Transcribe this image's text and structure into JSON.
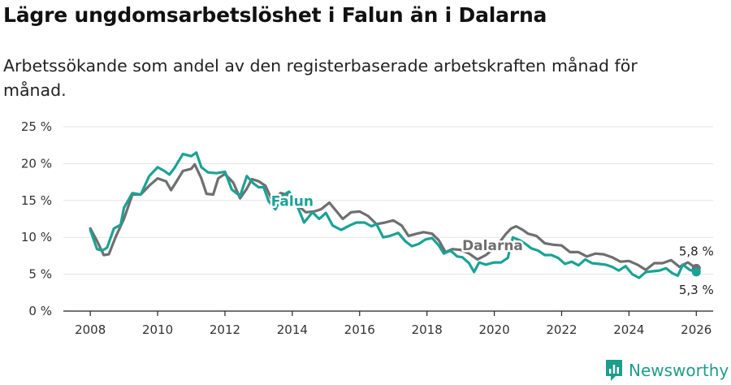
{
  "title": "Lägre ungdomsarbetslöshet i Falun än i Dalarna",
  "subtitle": "Arbetssökande som andel av den registerbaserade arbetskraften månad för månad.",
  "brand": {
    "name": "Newsworthy",
    "icon": "newsworthy-logo-icon"
  },
  "colors": {
    "falun": "#1aa394",
    "dalarna": "#6f6e70",
    "grid": "#e3e3e3",
    "axis": "#222222"
  },
  "chart_data": {
    "type": "line",
    "title": "Lägre ungdomsarbetslöshet i Falun än i Dalarna",
    "xlabel": "",
    "ylabel": "",
    "xlim": [
      2007.2,
      2026.5
    ],
    "ylim": [
      0,
      25
    ],
    "x_ticks": [
      {
        "value": 2008,
        "label": "2008"
      },
      {
        "value": 2010,
        "label": "2010"
      },
      {
        "value": 2012,
        "label": "2012"
      },
      {
        "value": 2014,
        "label": "2014"
      },
      {
        "value": 2016,
        "label": "2016"
      },
      {
        "value": 2018,
        "label": "2018"
      },
      {
        "value": 2020,
        "label": "2020"
      },
      {
        "value": 2022,
        "label": "2022"
      },
      {
        "value": 2024,
        "label": "2024"
      },
      {
        "value": 2026,
        "label": "2026"
      }
    ],
    "y_ticks": [
      {
        "value": 0,
        "label": "0 %"
      },
      {
        "value": 5,
        "label": "5 %"
      },
      {
        "value": 10,
        "label": "10 %"
      },
      {
        "value": 15,
        "label": "15 %"
      },
      {
        "value": 20,
        "label": "20 %"
      },
      {
        "value": 25,
        "label": "25 %"
      }
    ],
    "grid": true,
    "series": [
      {
        "name": "Dalarna",
        "color": "#6f6e70",
        "end_label": "5,8 %",
        "points": [
          [
            2008.0,
            11.2
          ],
          [
            2008.2,
            9.5
          ],
          [
            2008.4,
            7.6
          ],
          [
            2008.55,
            7.7
          ],
          [
            2008.75,
            10.0
          ],
          [
            2009.0,
            12.5
          ],
          [
            2009.25,
            15.8
          ],
          [
            2009.5,
            15.8
          ],
          [
            2009.75,
            17.0
          ],
          [
            2010.0,
            18.0
          ],
          [
            2010.25,
            17.6
          ],
          [
            2010.4,
            16.4
          ],
          [
            2010.55,
            17.5
          ],
          [
            2010.75,
            19.0
          ],
          [
            2011.0,
            19.3
          ],
          [
            2011.1,
            19.9
          ],
          [
            2011.3,
            18.0
          ],
          [
            2011.45,
            15.9
          ],
          [
            2011.65,
            15.8
          ],
          [
            2011.8,
            18.0
          ],
          [
            2012.0,
            18.6
          ],
          [
            2012.25,
            17.4
          ],
          [
            2012.45,
            15.3
          ],
          [
            2012.65,
            16.6
          ],
          [
            2012.8,
            17.9
          ],
          [
            2013.0,
            17.6
          ],
          [
            2013.2,
            17.0
          ],
          [
            2013.4,
            15.0
          ],
          [
            2013.65,
            16.0
          ],
          [
            2013.9,
            15.7
          ],
          [
            2014.2,
            14.2
          ],
          [
            2014.4,
            13.4
          ],
          [
            2014.65,
            13.5
          ],
          [
            2014.85,
            13.8
          ],
          [
            2015.1,
            14.7
          ],
          [
            2015.3,
            13.6
          ],
          [
            2015.5,
            12.5
          ],
          [
            2015.75,
            13.4
          ],
          [
            2016.0,
            13.5
          ],
          [
            2016.25,
            12.9
          ],
          [
            2016.5,
            11.8
          ],
          [
            2016.75,
            12.0
          ],
          [
            2017.0,
            12.3
          ],
          [
            2017.25,
            11.6
          ],
          [
            2017.45,
            10.2
          ],
          [
            2017.7,
            10.5
          ],
          [
            2017.9,
            10.7
          ],
          [
            2018.15,
            10.5
          ],
          [
            2018.35,
            9.6
          ],
          [
            2018.55,
            8.0
          ],
          [
            2018.75,
            8.4
          ],
          [
            2019.0,
            8.3
          ],
          [
            2019.25,
            7.8
          ],
          [
            2019.5,
            7.0
          ],
          [
            2019.75,
            7.6
          ],
          [
            2020.0,
            8.5
          ],
          [
            2020.2,
            9.6
          ],
          [
            2020.35,
            10.5
          ],
          [
            2020.5,
            11.2
          ],
          [
            2020.65,
            11.5
          ],
          [
            2020.85,
            11.0
          ],
          [
            2021.0,
            10.5
          ],
          [
            2021.25,
            10.2
          ],
          [
            2021.5,
            9.2
          ],
          [
            2021.75,
            9.0
          ],
          [
            2022.0,
            8.9
          ],
          [
            2022.25,
            8.0
          ],
          [
            2022.5,
            8.0
          ],
          [
            2022.75,
            7.4
          ],
          [
            2023.0,
            7.8
          ],
          [
            2023.25,
            7.7
          ],
          [
            2023.5,
            7.3
          ],
          [
            2023.75,
            6.7
          ],
          [
            2024.0,
            6.8
          ],
          [
            2024.25,
            6.3
          ],
          [
            2024.5,
            5.6
          ],
          [
            2024.75,
            6.5
          ],
          [
            2025.0,
            6.5
          ],
          [
            2025.25,
            6.9
          ],
          [
            2025.5,
            6.0
          ],
          [
            2025.75,
            6.6
          ],
          [
            2026.0,
            5.8
          ]
        ]
      },
      {
        "name": "Falun",
        "color": "#1aa394",
        "end_label": "5,3 %",
        "points": [
          [
            2008.0,
            11.0
          ],
          [
            2008.2,
            8.4
          ],
          [
            2008.35,
            8.2
          ],
          [
            2008.5,
            8.6
          ],
          [
            2008.7,
            11.2
          ],
          [
            2008.9,
            11.7
          ],
          [
            2009.0,
            14.0
          ],
          [
            2009.25,
            16.0
          ],
          [
            2009.5,
            15.8
          ],
          [
            2009.75,
            18.3
          ],
          [
            2010.0,
            19.5
          ],
          [
            2010.2,
            19.0
          ],
          [
            2010.35,
            18.5
          ],
          [
            2010.5,
            19.4
          ],
          [
            2010.75,
            21.3
          ],
          [
            2011.0,
            21.0
          ],
          [
            2011.15,
            21.5
          ],
          [
            2011.3,
            19.5
          ],
          [
            2011.5,
            18.8
          ],
          [
            2011.75,
            18.7
          ],
          [
            2012.0,
            18.9
          ],
          [
            2012.2,
            16.5
          ],
          [
            2012.45,
            15.6
          ],
          [
            2012.65,
            18.3
          ],
          [
            2012.85,
            17.3
          ],
          [
            2013.0,
            16.8
          ],
          [
            2013.15,
            16.8
          ],
          [
            2013.3,
            14.9
          ],
          [
            2013.5,
            13.8
          ],
          [
            2013.7,
            15.6
          ],
          [
            2013.9,
            16.2
          ],
          [
            2014.1,
            14.8
          ],
          [
            2014.35,
            12.0
          ],
          [
            2014.6,
            13.4
          ],
          [
            2014.8,
            12.5
          ],
          [
            2015.0,
            13.3
          ],
          [
            2015.2,
            11.6
          ],
          [
            2015.45,
            11.0
          ],
          [
            2015.7,
            11.6
          ],
          [
            2015.9,
            12.0
          ],
          [
            2016.15,
            12.0
          ],
          [
            2016.35,
            11.5
          ],
          [
            2016.5,
            11.8
          ],
          [
            2016.7,
            10.0
          ],
          [
            2016.9,
            10.2
          ],
          [
            2017.15,
            10.6
          ],
          [
            2017.35,
            9.5
          ],
          [
            2017.55,
            8.8
          ],
          [
            2017.75,
            9.1
          ],
          [
            2017.95,
            9.7
          ],
          [
            2018.15,
            9.9
          ],
          [
            2018.35,
            8.9
          ],
          [
            2018.5,
            7.8
          ],
          [
            2018.7,
            8.2
          ],
          [
            2018.9,
            7.4
          ],
          [
            2019.05,
            7.3
          ],
          [
            2019.25,
            6.5
          ],
          [
            2019.4,
            5.3
          ],
          [
            2019.55,
            6.6
          ],
          [
            2019.75,
            6.3
          ],
          [
            2020.0,
            6.6
          ],
          [
            2020.2,
            6.6
          ],
          [
            2020.4,
            7.2
          ],
          [
            2020.55,
            10.0
          ],
          [
            2020.75,
            9.6
          ],
          [
            2020.9,
            9.2
          ],
          [
            2021.1,
            8.5
          ],
          [
            2021.3,
            8.2
          ],
          [
            2021.5,
            7.6
          ],
          [
            2021.7,
            7.6
          ],
          [
            2021.9,
            7.2
          ],
          [
            2022.1,
            6.4
          ],
          [
            2022.3,
            6.7
          ],
          [
            2022.5,
            6.2
          ],
          [
            2022.7,
            7.0
          ],
          [
            2022.9,
            6.5
          ],
          [
            2023.1,
            6.4
          ],
          [
            2023.3,
            6.3
          ],
          [
            2023.5,
            6.0
          ],
          [
            2023.7,
            5.5
          ],
          [
            2023.9,
            6.1
          ],
          [
            2024.1,
            5.0
          ],
          [
            2024.3,
            4.5
          ],
          [
            2024.5,
            5.3
          ],
          [
            2024.7,
            5.4
          ],
          [
            2024.9,
            5.5
          ],
          [
            2025.1,
            5.8
          ],
          [
            2025.3,
            5.1
          ],
          [
            2025.45,
            4.8
          ],
          [
            2025.6,
            6.3
          ],
          [
            2025.8,
            5.6
          ],
          [
            2026.0,
            5.3
          ]
        ]
      }
    ],
    "annotations": [
      {
        "text": "Falun",
        "series": "Falun",
        "x": 2014.0,
        "y": 14.9
      },
      {
        "text": "Dalarna",
        "series": "Dalarna",
        "x": 2019.95,
        "y": 8.9
      }
    ]
  }
}
